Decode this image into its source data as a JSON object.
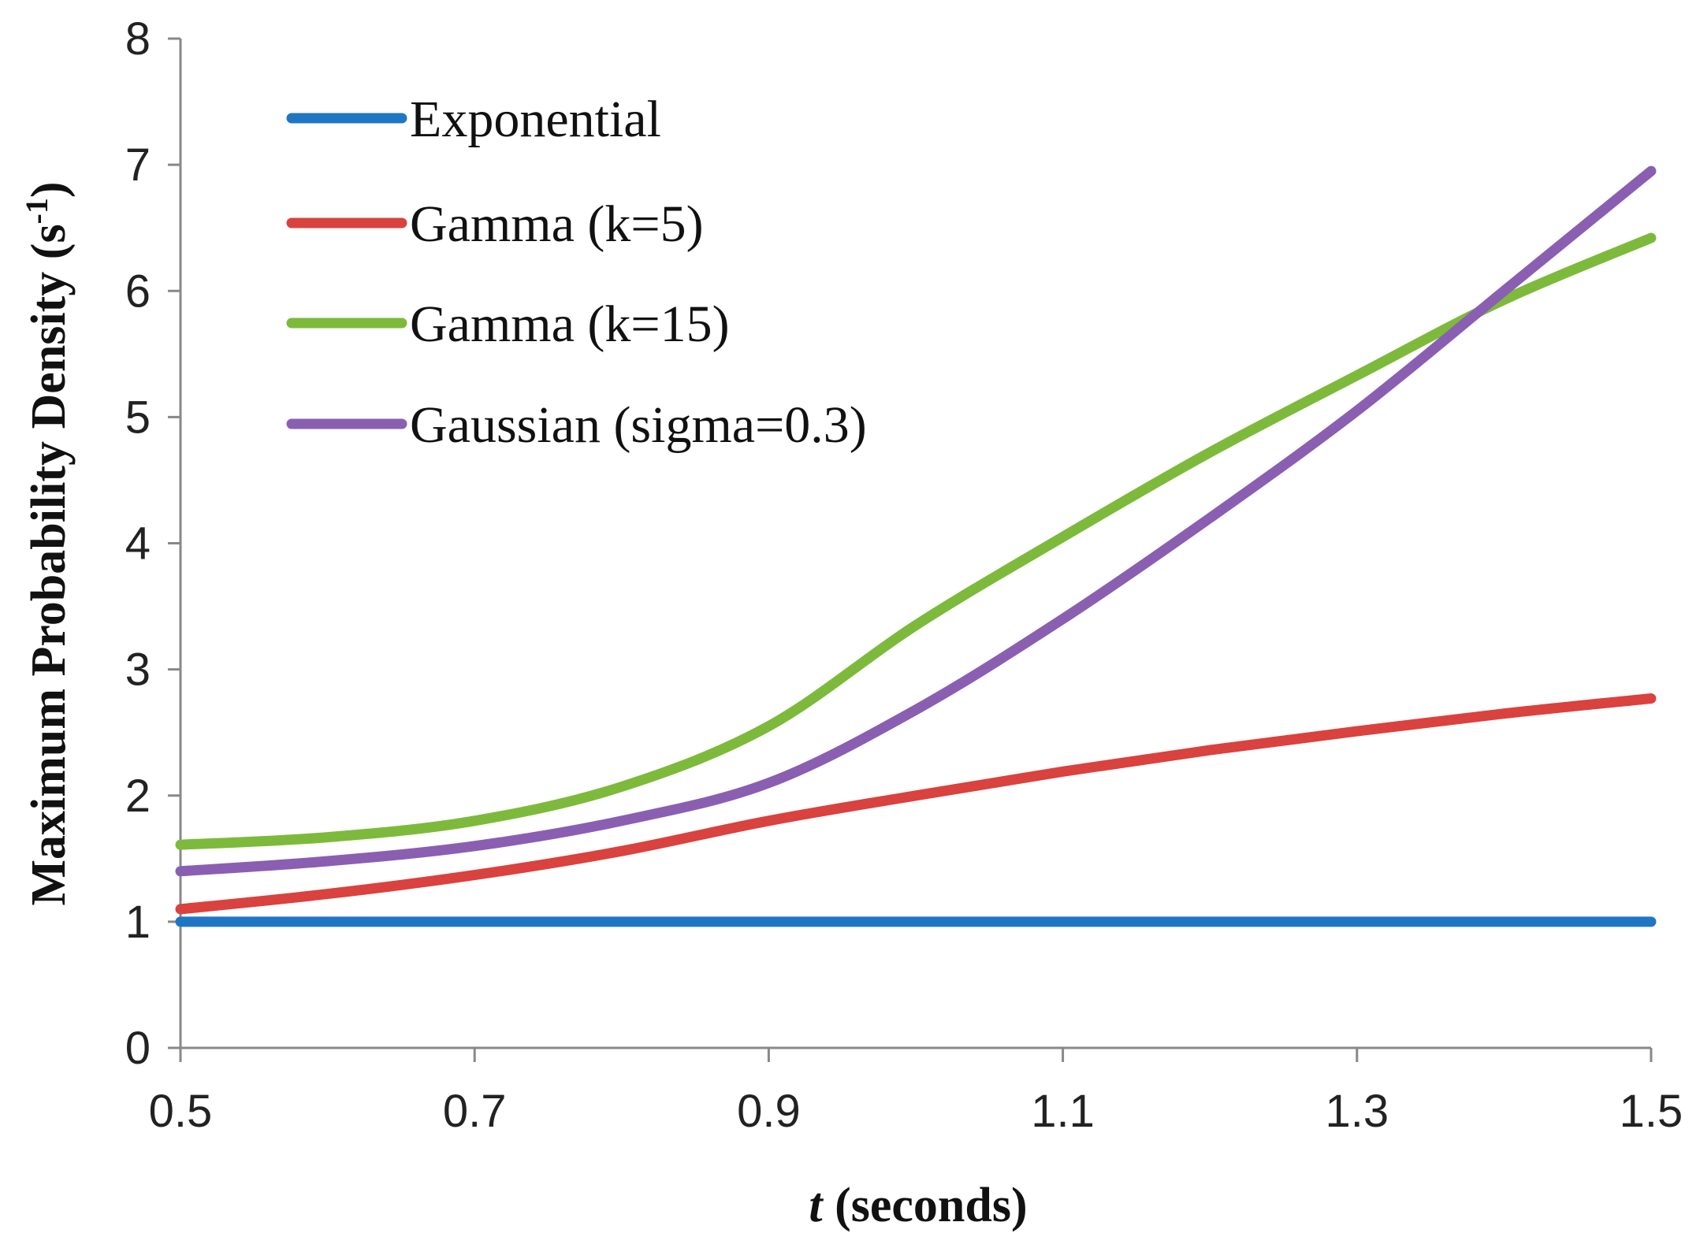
{
  "chart_data": {
    "type": "line",
    "title": "",
    "xlabel_italic": "t",
    "xlabel_rest": " (seconds)",
    "ylabel_main": "Maximum  Probability  Density (s",
    "ylabel_sup": "-1",
    "ylabel_close": ")",
    "xlim": [
      0.5,
      1.5
    ],
    "ylim": [
      0,
      8
    ],
    "xticks": [
      "0.5",
      "0.7",
      "0.9",
      "1.1",
      "1.3",
      "1.5"
    ],
    "yticks": [
      "0",
      "1",
      "2",
      "3",
      "4",
      "5",
      "6",
      "7",
      "8"
    ],
    "legend_position": "top-left",
    "series": [
      {
        "name": "Exponential",
        "color": "#1f77c4",
        "x": [
          0.5,
          0.6,
          0.7,
          0.8,
          0.9,
          1.0,
          1.1,
          1.2,
          1.3,
          1.4,
          1.5
        ],
        "y": [
          1.0,
          1.0,
          1.0,
          1.0,
          1.0,
          1.0,
          1.0,
          1.0,
          1.0,
          1.0,
          1.0
        ]
      },
      {
        "name": "Gamma (k=5)",
        "color": "#d9423e",
        "x": [
          0.5,
          0.6,
          0.7,
          0.8,
          0.9,
          1.0,
          1.1,
          1.2,
          1.3,
          1.4,
          1.5
        ],
        "y": [
          1.1,
          1.22,
          1.37,
          1.56,
          1.8,
          2.0,
          2.19,
          2.36,
          2.51,
          2.65,
          2.77
        ]
      },
      {
        "name": "Gamma (k=15)",
        "color": "#7dba3c",
        "x": [
          0.5,
          0.6,
          0.7,
          0.8,
          0.9,
          1.0,
          1.1,
          1.2,
          1.3,
          1.4,
          1.5
        ],
        "y": [
          1.61,
          1.67,
          1.8,
          2.07,
          2.55,
          3.35,
          4.05,
          4.72,
          5.33,
          5.93,
          6.42
        ]
      },
      {
        "name": "Gaussian (sigma=0.3)",
        "color": "#8a5fb1",
        "x": [
          0.5,
          0.6,
          0.7,
          0.8,
          0.9,
          1.0,
          1.1,
          1.2,
          1.3,
          1.4,
          1.5
        ],
        "y": [
          1.4,
          1.48,
          1.6,
          1.8,
          2.1,
          2.68,
          3.4,
          4.2,
          5.05,
          6.0,
          6.95
        ]
      }
    ]
  }
}
